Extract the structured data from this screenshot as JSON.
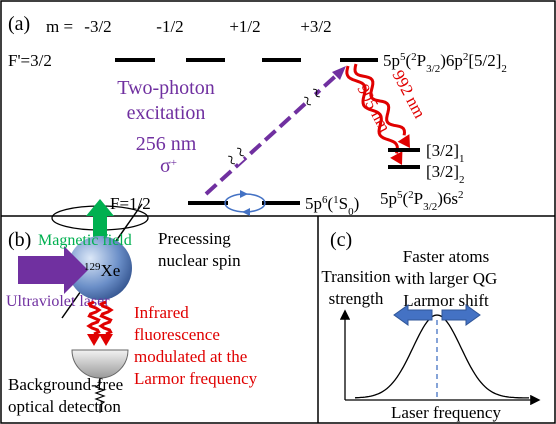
{
  "panel_a": {
    "label": "(a)",
    "m_label": "m =",
    "m_values": [
      "-3/2",
      "-1/2",
      "+1/2",
      "+3/2"
    ],
    "upper_level": "F'=3/2",
    "upper_state": [
      "5p",
      "5",
      "(",
      "2",
      "P",
      "3/2",
      ")6p",
      "2",
      "[5/2]",
      "2"
    ],
    "excitation": [
      "Two-photon",
      "excitation"
    ],
    "wavelength": "256 nm",
    "polarization": [
      "σ",
      "+"
    ],
    "lower_level": "F=1/2",
    "ground_state": [
      "5p",
      "6",
      "(",
      "1",
      "S",
      "0",
      ")"
    ],
    "sublevels": [
      [
        "[3/2]",
        "1"
      ],
      [
        "[3/2]",
        "2"
      ]
    ],
    "decay_labels": [
      "992 nm",
      "905 nm"
    ],
    "final_state": [
      "5p",
      "5",
      "(",
      "2",
      "P",
      "3/2",
      ")6s",
      "2"
    ]
  },
  "panel_b": {
    "label": "(b)",
    "magnetic_field": "Magnetic field",
    "laser": "Ultraviolet laser",
    "isotope": [
      "129",
      "Xe"
    ],
    "spin": [
      "Precessing",
      "nuclear spin"
    ],
    "fluorescence": [
      "Infrared",
      "fluorescence",
      "modulated at the",
      "Larmor frequency"
    ],
    "detection": [
      "Background-free",
      "optical detection"
    ]
  },
  "panel_c": {
    "label": "(c)",
    "y_axis": [
      "Transition",
      "strength"
    ],
    "x_axis": "Laser frequency",
    "annotation": [
      "Faster atoms",
      "with larger QG",
      "Larmor shift"
    ]
  }
}
